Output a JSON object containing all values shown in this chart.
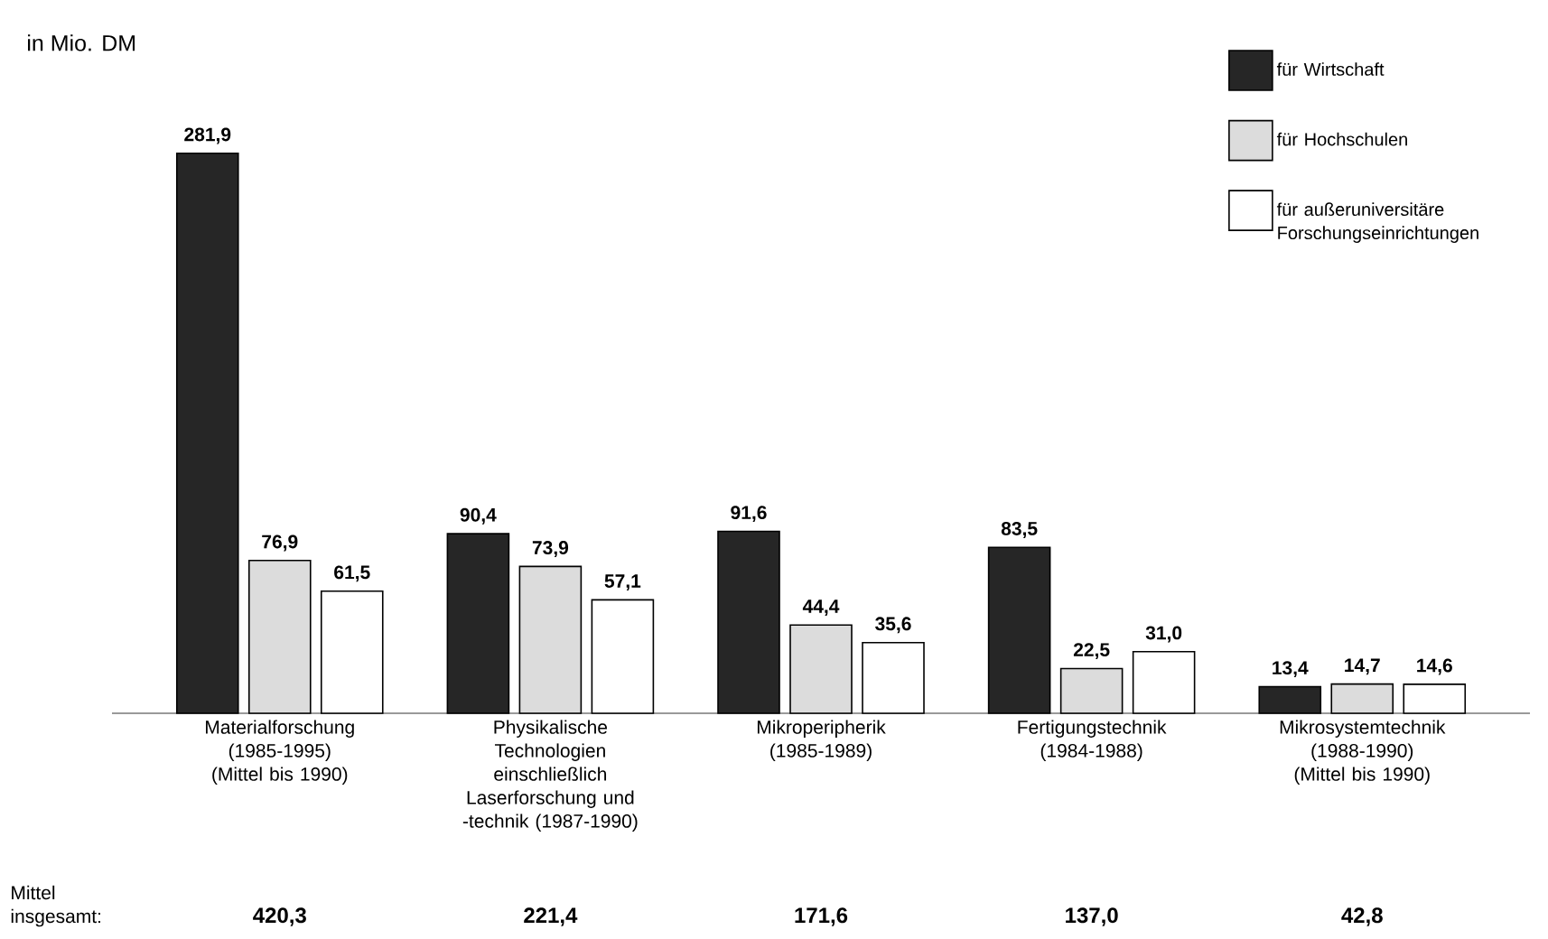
{
  "chart_data": {
    "type": "bar",
    "ylabel": "in Mio. DM",
    "categories": [
      "Materialforschung (1985-1995) (Mittel bis 1990)",
      "Physikalische Technologien einschließlich Laserforschung und -technik (1987-1990)",
      "Mikroperipherik (1985-1989)",
      "Fertigungstechnik (1984-1988)",
      "Mikrosystemtechnik (1988-1990) (Mittel bis 1990)"
    ],
    "series": [
      {
        "name": "für Wirtschaft",
        "color": "#262626",
        "values": [
          281.9,
          90.4,
          91.6,
          83.5,
          13.4
        ],
        "value_labels": [
          "281,9",
          "90,4",
          "91,6",
          "83,5",
          "13,4"
        ]
      },
      {
        "name": "für Hochschulen",
        "color": "#dcdcdc",
        "values": [
          76.9,
          73.9,
          44.4,
          22.5,
          14.7
        ],
        "value_labels": [
          "76,9",
          "73,9",
          "44,4",
          "22,5",
          "14,7"
        ]
      },
      {
        "name": "für außeruniversitäre Forschungseinrichtungen",
        "color": "#ffffff",
        "values": [
          61.5,
          57.1,
          35.6,
          31.0,
          14.6
        ],
        "value_labels": [
          "61,5",
          "57,1",
          "35,6",
          "31,0",
          "14,6"
        ]
      }
    ],
    "ylim": [
      0,
      300
    ],
    "legend": "top right",
    "annotations": [
      "Mittel insgesamt:",
      "420,3",
      "221,4",
      "171,6",
      "137,0",
      "42,8"
    ]
  }
}
